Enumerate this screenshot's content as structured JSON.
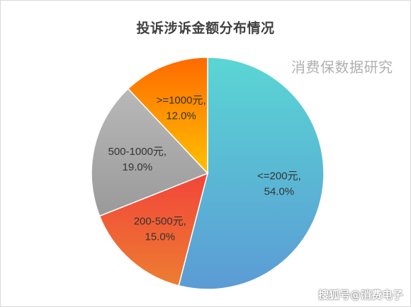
{
  "chart_data": {
    "type": "pie",
    "title": "投诉涉诉金额分布情况",
    "start_angle_deg": 0,
    "direction": "clockwise",
    "slices": [
      {
        "label": "<=200元",
        "value": 54.0,
        "value_label": "54.0%",
        "color": "#5ccfd6"
      },
      {
        "label": "200-500元",
        "value": 15.0,
        "value_label": "15.0%",
        "color": "#f06a3a"
      },
      {
        "label": "500-1000元",
        "value": 19.0,
        "value_label": "19.0%",
        "color": "#a9a9a9"
      },
      {
        "label": ">=1000元",
        "value": 12.0,
        "value_label": "12.0%",
        "color": "#ffb000"
      }
    ]
  },
  "watermark": "消费保数据研究",
  "credit": "搜狐号@消费电子"
}
